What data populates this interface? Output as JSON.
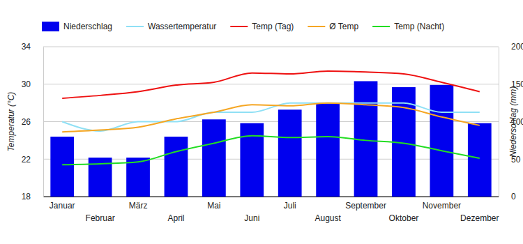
{
  "chart_data": {
    "type": "bar",
    "categories": [
      "Januar",
      "Februar",
      "März",
      "April",
      "Mai",
      "Juni",
      "Juli",
      "August",
      "September",
      "Oktober",
      "November",
      "Dezember"
    ],
    "y_label": "Temperatur (°C)",
    "y2_label": "Niederschlag (mm)",
    "ylim": [
      18,
      34
    ],
    "yticks": [
      18,
      22,
      26,
      30,
      34
    ],
    "y2lim": [
      0,
      200
    ],
    "y2ticks": [
      0,
      50,
      100,
      150,
      200
    ],
    "grid": true,
    "legend": "top",
    "series": [
      {
        "name": "Niederschlag",
        "type": "bar",
        "axis": "y2",
        "color": "#0000ee",
        "values": [
          80,
          52,
          52,
          80,
          103,
          98,
          116,
          125,
          154,
          146,
          149,
          98
        ]
      },
      {
        "name": "Wassertemperatur",
        "type": "line",
        "color": "#8fe0f5",
        "values": [
          26.0,
          25.0,
          26.0,
          26.0,
          27.0,
          27.0,
          28.0,
          28.0,
          28.0,
          28.0,
          27.0,
          27.0
        ]
      },
      {
        "name": "Temp (Tag)",
        "type": "line",
        "color": "#ee1111",
        "values": [
          28.5,
          28.8,
          29.2,
          29.9,
          30.2,
          31.2,
          31.1,
          31.4,
          31.3,
          31.1,
          30.2,
          29.2
        ]
      },
      {
        "name": "Ø Temp",
        "type": "line",
        "color": "#f5a623",
        "values": [
          24.9,
          25.1,
          25.4,
          26.3,
          27.0,
          27.8,
          27.7,
          28.0,
          27.8,
          27.5,
          26.5,
          25.6
        ]
      },
      {
        "name": "Temp (Nacht)",
        "type": "line",
        "color": "#22dd22",
        "values": [
          21.4,
          21.5,
          21.7,
          22.8,
          23.7,
          24.5,
          24.3,
          24.4,
          24.0,
          23.7,
          22.9,
          22.1
        ]
      }
    ]
  }
}
